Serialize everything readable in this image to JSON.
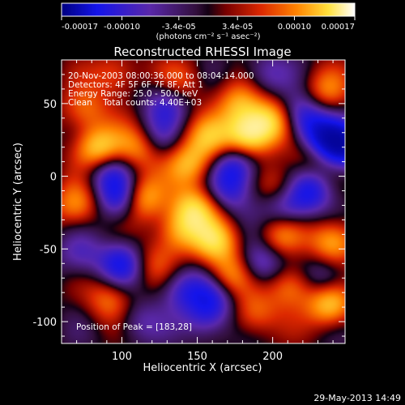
{
  "chart_data": {
    "type": "heatmap",
    "title": "Reconstructed RHESSI Image",
    "xlabel": "Heliocentric X (arcsec)",
    "ylabel": "Heliocentric Y (arcsec)",
    "xlim": [
      60,
      248
    ],
    "ylim": [
      -115,
      80
    ],
    "xticks": [
      100,
      150,
      200
    ],
    "yticks": [
      -100,
      -50,
      0,
      50
    ],
    "colorbar": {
      "range": [
        -0.00017,
        0.00017
      ],
      "ticks": [
        -0.00017,
        -0.0001,
        -3.4e-05,
        3.4e-05,
        0.0001,
        0.00017
      ],
      "tick_labels": [
        "-0.00017",
        "-0.00010",
        "-3.4e-05",
        "3.4e-05",
        "0.00010",
        "0.00017"
      ],
      "unit_label": "(photons cm⁻² s⁻¹ asec⁻²)",
      "colormap": "blue-purple-red-orange-yellow-white"
    },
    "annotations": {
      "time_range": "20-Nov-2003 08:00:36.000 to 08:04:14.000",
      "detectors": "Detectors: 4F 5F 6F 7F 8F, Att 1",
      "energy_range": "Energy Range: 25.0 - 50.0 keV",
      "clean": "Clean    Total counts: 4.40E+03",
      "peak": "Position of Peak = [183,28]"
    },
    "blobs": [
      {
        "x": 183,
        "y": 28,
        "v": 1.0
      },
      {
        "x": 198,
        "y": 38,
        "v": 0.8
      },
      {
        "x": 178,
        "y": 50,
        "v": 0.6
      },
      {
        "x": 145,
        "y": 8,
        "v": 0.7
      },
      {
        "x": 158,
        "y": 26,
        "v": 0.6
      },
      {
        "x": 148,
        "y": -22,
        "v": 0.8
      },
      {
        "x": 137,
        "y": -38,
        "v": 0.6
      },
      {
        "x": 112,
        "y": -15,
        "v": 0.9
      },
      {
        "x": 112,
        "y": 20,
        "v": 0.7
      },
      {
        "x": 85,
        "y": 18,
        "v": 0.95
      },
      {
        "x": 75,
        "y": 45,
        "v": 0.5
      },
      {
        "x": 162,
        "y": -45,
        "v": 0.8
      },
      {
        "x": 172,
        "y": -68,
        "v": 0.6
      },
      {
        "x": 205,
        "y": -40,
        "v": 0.55
      },
      {
        "x": 212,
        "y": -75,
        "v": 0.6
      },
      {
        "x": 240,
        "y": -45,
        "v": 0.75
      },
      {
        "x": 238,
        "y": -88,
        "v": 0.85
      },
      {
        "x": 225,
        "y": 15,
        "v": 0.5
      },
      {
        "x": 235,
        "y": 58,
        "v": 0.5
      },
      {
        "x": 96,
        "y": 70,
        "v": 0.45
      },
      {
        "x": 70,
        "y": -20,
        "v": 0.6
      },
      {
        "x": 92,
        "y": -85,
        "v": 0.5
      },
      {
        "x": 140,
        "y": 65,
        "v": 0.4
      },
      {
        "x": 188,
        "y": -95,
        "v": 0.5
      },
      {
        "x": 205,
        "y": -8,
        "v": 0.45
      },
      {
        "x": 120,
        "y": -60,
        "v": 0.35
      },
      {
        "x": 100,
        "y": -15,
        "v": -0.9
      },
      {
        "x": 100,
        "y": -60,
        "v": -0.7
      },
      {
        "x": 90,
        "y": 5,
        "v": -0.6
      },
      {
        "x": 232,
        "y": 25,
        "v": -0.9
      },
      {
        "x": 248,
        "y": 20,
        "v": -1.0
      },
      {
        "x": 225,
        "y": -10,
        "v": -0.7
      },
      {
        "x": 208,
        "y": -22,
        "v": -0.6
      },
      {
        "x": 176,
        "y": 8,
        "v": -0.7
      },
      {
        "x": 172,
        "y": -10,
        "v": -0.5
      },
      {
        "x": 220,
        "y": 42,
        "v": -0.7
      },
      {
        "x": 160,
        "y": -85,
        "v": -0.6
      },
      {
        "x": 140,
        "y": -78,
        "v": -0.5
      },
      {
        "x": 192,
        "y": -60,
        "v": -0.6
      },
      {
        "x": 130,
        "y": 50,
        "v": -0.5
      },
      {
        "x": 122,
        "y": 25,
        "v": -0.45
      },
      {
        "x": 235,
        "y": -70,
        "v": -0.5
      },
      {
        "x": 195,
        "y": 70,
        "v": -0.4
      },
      {
        "x": 72,
        "y": -55,
        "v": -0.4
      },
      {
        "x": 155,
        "y": -100,
        "v": -0.4
      },
      {
        "x": 110,
        "y": -100,
        "v": -0.35
      }
    ]
  },
  "footer": {
    "timestamp": "29-May-2013 14:49"
  }
}
